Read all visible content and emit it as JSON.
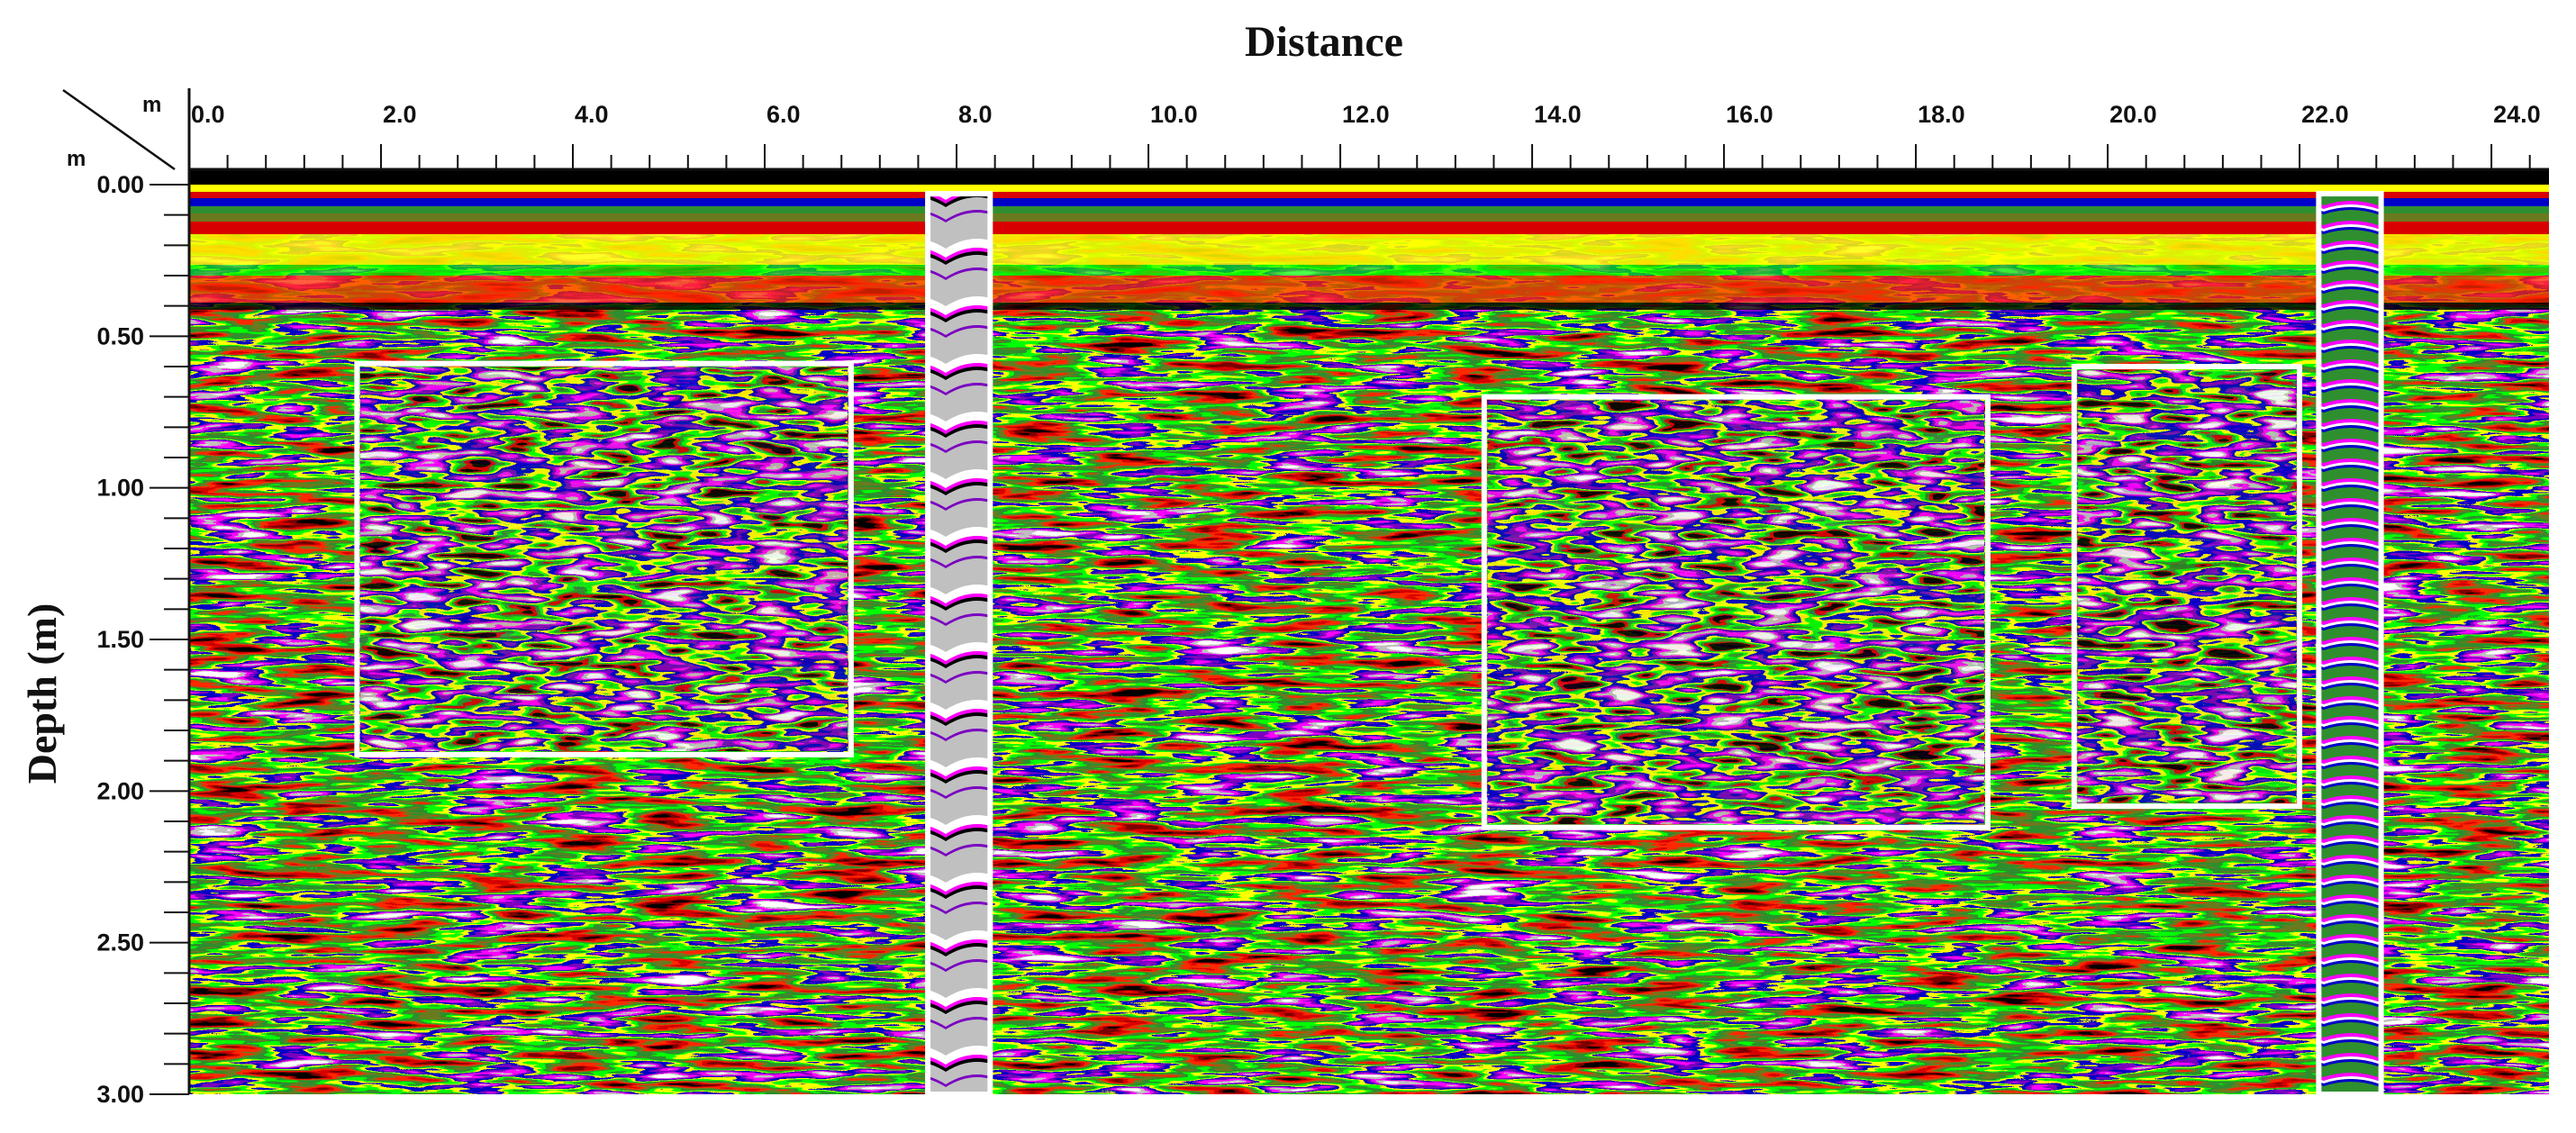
{
  "chart_data": {
    "type": "heatmap",
    "title": "Distance",
    "xlabel": "Distance",
    "ylabel": "Depth (m)",
    "corner_x_unit": "m",
    "corner_y_unit": "m",
    "x_ticks": [
      "0.0",
      "2.0",
      "4.0",
      "6.0",
      "8.0",
      "10.0",
      "12.0",
      "14.0",
      "16.0",
      "18.0",
      "20.0",
      "22.0",
      "24.0"
    ],
    "y_ticks": [
      "0.00",
      "0.50",
      "1.00",
      "1.50",
      "2.00",
      "2.50",
      "3.00"
    ],
    "x_range": [
      0,
      24.6
    ],
    "y_range": [
      0,
      3.0
    ],
    "palette": [
      "#000000",
      "#7a0000",
      "#d80000",
      "#ff2a00",
      "#6b7a1e",
      "#2f8f2f",
      "#00ff00",
      "#ffff00",
      "#0000c8",
      "#7a00c0",
      "#ff00ff",
      "#c0c0c0",
      "#ffffff"
    ],
    "anomaly_boxes": [
      {
        "name": "box-1",
        "x": [
          1.75,
          6.9
        ],
        "y": [
          0.59,
          1.88
        ]
      },
      {
        "name": "box-2",
        "x": [
          13.5,
          18.75
        ],
        "y": [
          0.7,
          2.12
        ]
      },
      {
        "name": "box-3",
        "x": [
          19.65,
          22.0
        ],
        "y": [
          0.6,
          2.05
        ]
      }
    ],
    "hyperbola_strips": [
      {
        "name": "strip-1",
        "x": [
          7.7,
          8.35
        ],
        "y": [
          0.03,
          3.0
        ]
      },
      {
        "name": "strip-2",
        "x": [
          22.2,
          22.85
        ],
        "y": [
          0.03,
          3.0
        ]
      }
    ],
    "grid": false
  }
}
